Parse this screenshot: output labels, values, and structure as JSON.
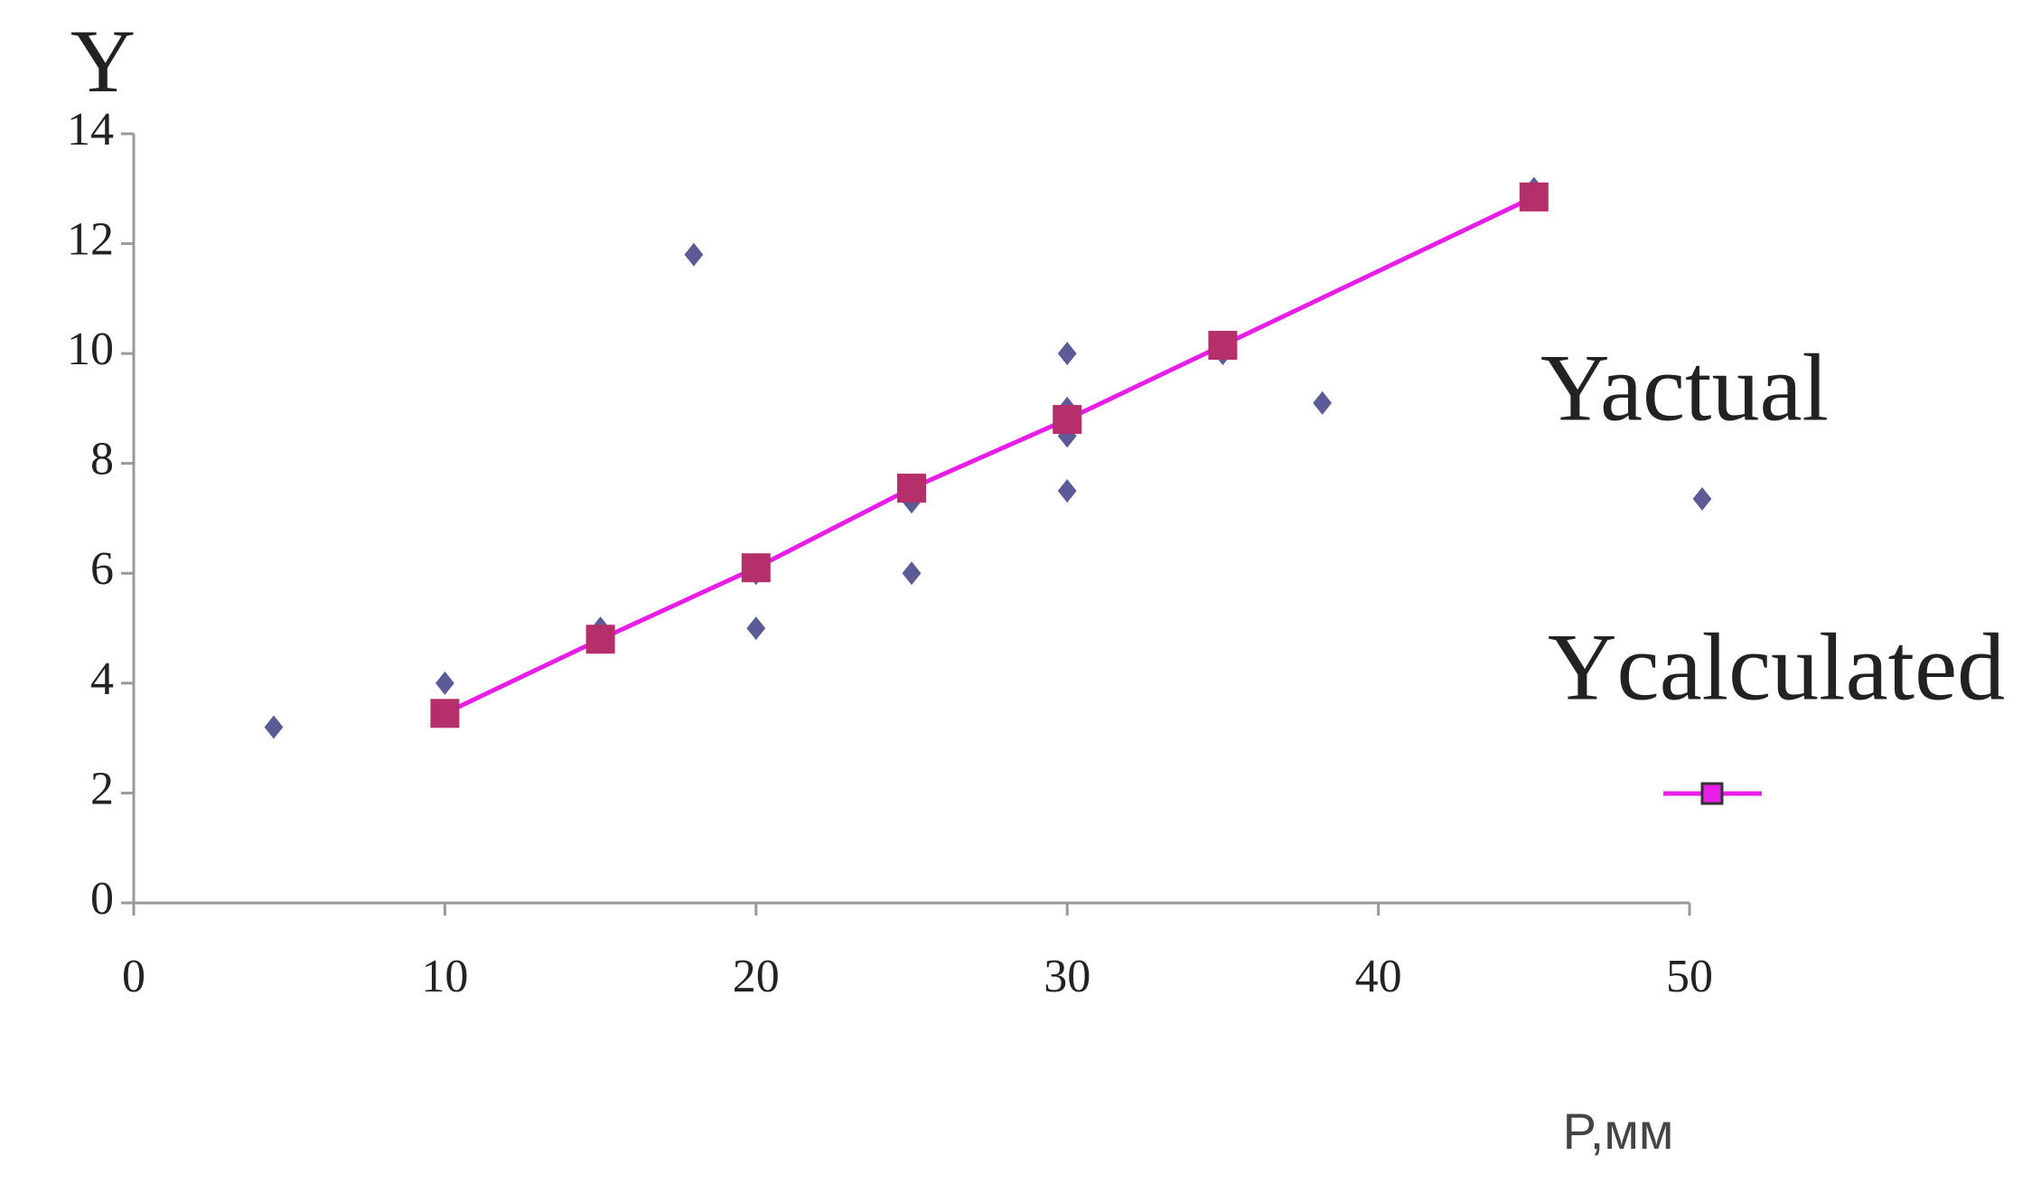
{
  "chart_data": {
    "type": "scatter",
    "ylabel": "Y",
    "xlabel": "P,мм",
    "xlim": [
      0,
      50
    ],
    "xticks": [
      0,
      10,
      20,
      30,
      40,
      50
    ],
    "ylim": [
      0,
      14
    ],
    "yticks": [
      0,
      2,
      4,
      6,
      8,
      10,
      12,
      14
    ],
    "series": [
      {
        "name": "Yactual",
        "color": "#5b5b98",
        "marker": "diamond",
        "line": false,
        "x": [
          4.5,
          10,
          15,
          15,
          18,
          20,
          20,
          25,
          25,
          30,
          30,
          30,
          30,
          35,
          38.2,
          45
        ],
        "values": [
          3.2,
          4,
          5,
          4.9,
          11.8,
          6,
          5,
          7.3,
          6,
          10,
          9,
          8.5,
          7.5,
          10,
          9.1,
          13
        ]
      },
      {
        "name": "Ycalculated",
        "color": "#b5306a",
        "line_color": "#e81ee8",
        "marker": "square",
        "line": true,
        "x": [
          10,
          15,
          20,
          25,
          30,
          35,
          45
        ],
        "values": [
          3.45,
          4.8,
          6.1,
          7.55,
          8.8,
          10.15,
          12.85
        ]
      }
    ]
  }
}
